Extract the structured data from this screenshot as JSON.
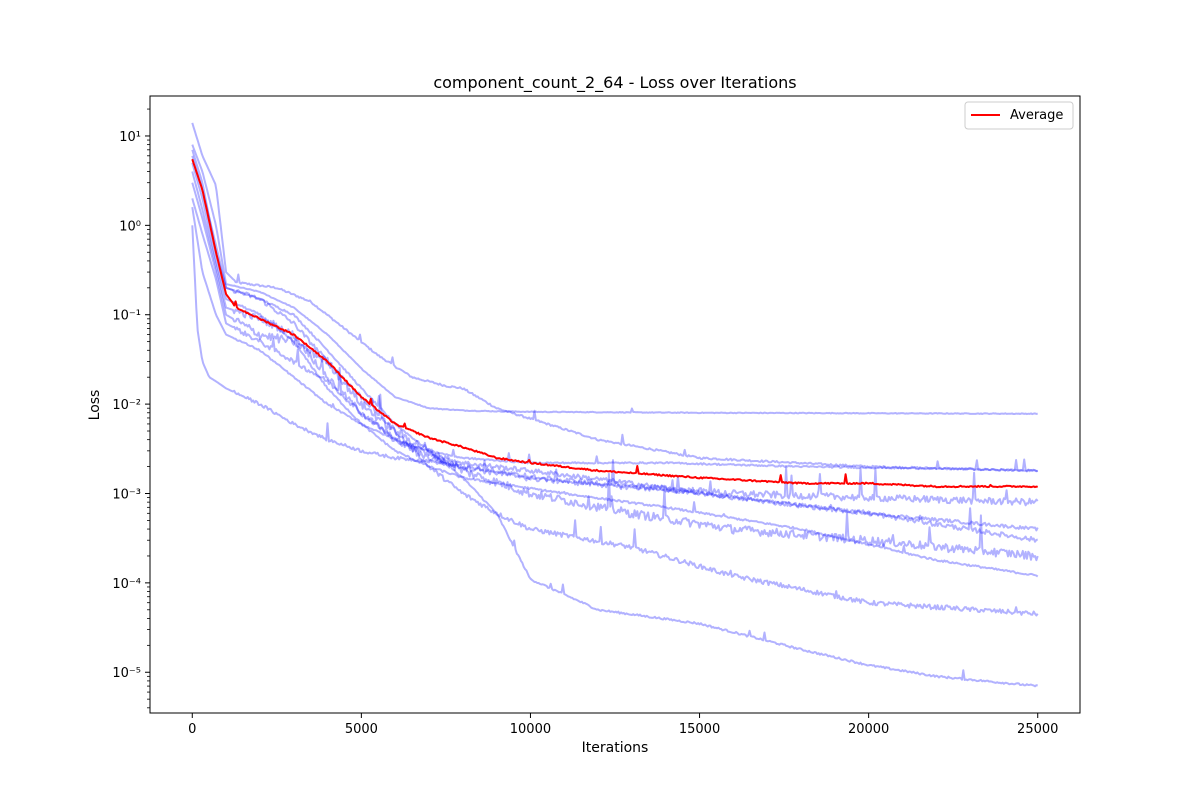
{
  "chart_data": {
    "type": "line",
    "title": "component_count_2_64 - Loss over Iterations",
    "xlabel": "Iterations",
    "ylabel": "Loss",
    "yscale": "log",
    "xlim": [
      -1250,
      26250
    ],
    "ylim": [
      3.5e-06,
      28
    ],
    "xticks": [
      0,
      5000,
      10000,
      15000,
      20000,
      25000
    ],
    "yticks": [
      1e-05,
      0.0001,
      0.001,
      0.01,
      0.1,
      1,
      10
    ],
    "ytick_labels": [
      "10⁻⁵",
      "10⁻⁴",
      "10⁻³",
      "10⁻²",
      "10⁻¹",
      "10⁰",
      "10¹"
    ],
    "grid": false,
    "legend": {
      "placement": "top-right",
      "entries": [
        "Average"
      ]
    },
    "colors": {
      "runs": "#0000ff",
      "average": "#ff0000"
    },
    "runs": [
      {
        "x": [
          0,
          300,
          700,
          1000,
          1300,
          2500,
          3500,
          4500,
          5500,
          6500,
          7500,
          8000,
          9000,
          12000,
          15000,
          20000,
          25000
        ],
        "y": [
          14,
          6,
          2.8,
          0.3,
          0.23,
          0.2,
          0.14,
          0.07,
          0.035,
          0.02,
          0.016,
          0.015,
          0.009,
          0.004,
          0.0025,
          0.002,
          0.0018
        ],
        "noise": 0.05
      },
      {
        "x": [
          0,
          300,
          700,
          1000,
          2000,
          3000,
          4000,
          5000,
          6000,
          7000,
          8000,
          9000,
          10000,
          15000,
          20000,
          25000
        ],
        "y": [
          8,
          4,
          1.0,
          0.22,
          0.18,
          0.12,
          0.06,
          0.025,
          0.012,
          0.009,
          0.0085,
          0.0083,
          0.0082,
          0.008,
          0.0079,
          0.0078
        ],
        "noise": 0.02
      },
      {
        "x": [
          0,
          300,
          700,
          1000,
          2000,
          3000,
          4000,
          5000,
          6000,
          7000,
          8000,
          9000,
          10000,
          12000,
          15000,
          18000,
          20000,
          22000,
          25000
        ],
        "y": [
          7,
          3,
          0.5,
          0.2,
          0.15,
          0.1,
          0.04,
          0.015,
          0.006,
          0.003,
          0.0015,
          0.0006,
          0.00011,
          5e-05,
          3.5e-05,
          1.8e-05,
          1.2e-05,
          9e-06,
          7e-06
        ],
        "noise": 0.05
      },
      {
        "x": [
          0,
          300,
          700,
          1000,
          2000,
          3000,
          4000,
          5000,
          6000,
          7000,
          8000,
          9000,
          10000,
          13000,
          16000,
          20000,
          25000
        ],
        "y": [
          6,
          2.5,
          0.6,
          0.2,
          0.15,
          0.08,
          0.03,
          0.012,
          0.005,
          0.002,
          0.001,
          0.0006,
          0.0004,
          0.00025,
          0.00012,
          6e-05,
          4.5e-05
        ],
        "noise": 0.12
      },
      {
        "x": [
          0,
          300,
          700,
          1000,
          2000,
          3000,
          4000,
          5000,
          6000,
          7000,
          8000,
          9000,
          11000,
          14000,
          18000,
          22000,
          25000
        ],
        "y": [
          5,
          2,
          0.4,
          0.15,
          0.1,
          0.05,
          0.015,
          0.006,
          0.003,
          0.002,
          0.0015,
          0.0013,
          0.001,
          0.0007,
          0.0004,
          0.00018,
          0.00012
        ],
        "noise": 0.05
      },
      {
        "x": [
          0,
          300,
          700,
          1000,
          2000,
          3000,
          4000,
          5000,
          6000,
          7000,
          8000,
          10000,
          13000,
          16000,
          20000,
          25000
        ],
        "y": [
          4,
          1.5,
          0.35,
          0.12,
          0.09,
          0.06,
          0.02,
          0.008,
          0.004,
          0.0025,
          0.002,
          0.0015,
          0.0012,
          0.001,
          0.0009,
          0.0008
        ],
        "noise": 0.18
      },
      {
        "x": [
          0,
          300,
          700,
          1000,
          2000,
          3000,
          4000,
          5000,
          6000,
          7000,
          8000,
          10000,
          13000,
          16000,
          20000,
          25000
        ],
        "y": [
          3,
          1.2,
          0.3,
          0.1,
          0.06,
          0.05,
          0.03,
          0.01,
          0.005,
          0.003,
          0.0018,
          0.001,
          0.0006,
          0.0004,
          0.0003,
          0.0002
        ],
        "noise": 0.22
      },
      {
        "x": [
          0,
          300,
          700,
          1000,
          2000,
          3000,
          4000,
          5000,
          6000,
          7000,
          8000,
          10000,
          13000,
          16000,
          20000,
          25000
        ],
        "y": [
          2,
          0.8,
          0.25,
          0.08,
          0.05,
          0.03,
          0.018,
          0.008,
          0.004,
          0.0028,
          0.0022,
          0.0018,
          0.0013,
          0.0009,
          0.0006,
          0.0003
        ],
        "noise": 0.12
      },
      {
        "x": [
          0,
          300,
          700,
          1000,
          2000,
          3000,
          4000,
          5000,
          6000,
          7000,
          8000,
          10000,
          14000,
          18000,
          22000,
          25000
        ],
        "y": [
          1.6,
          0.3,
          0.1,
          0.06,
          0.04,
          0.02,
          0.01,
          0.006,
          0.004,
          0.003,
          0.0025,
          0.0022,
          0.0022,
          0.002,
          0.0019,
          0.0018
        ],
        "noise": 0.04
      },
      {
        "x": [
          0,
          150,
          300,
          500,
          700,
          1000,
          2000,
          3000,
          4000,
          5000,
          6000,
          7000,
          8000,
          10000,
          15000,
          20000,
          25000
        ],
        "y": [
          1.0,
          0.07,
          0.03,
          0.02,
          0.018,
          0.015,
          0.01,
          0.006,
          0.004,
          0.003,
          0.0025,
          0.0023,
          0.002,
          0.0015,
          0.001,
          0.0006,
          0.0004
        ],
        "noise": 0.08
      }
    ],
    "average": {
      "name": "Average",
      "x": [
        0,
        300,
        700,
        1000,
        1300,
        2000,
        3000,
        4000,
        5000,
        6000,
        7000,
        8000,
        9000,
        10000,
        12000,
        15000,
        18000,
        20000,
        22000,
        25000
      ],
      "y": [
        5.5,
        2.5,
        0.5,
        0.17,
        0.12,
        0.09,
        0.06,
        0.03,
        0.012,
        0.006,
        0.0042,
        0.0033,
        0.0025,
        0.0022,
        0.0018,
        0.0015,
        0.0013,
        0.0013,
        0.0012,
        0.0012
      ]
    }
  }
}
